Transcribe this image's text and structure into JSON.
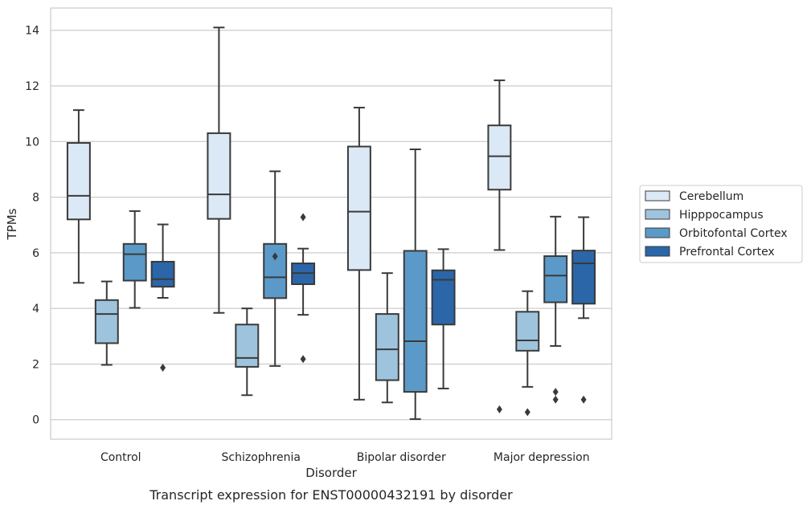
{
  "chart_data": {
    "type": "box",
    "xlabel": "Disorder",
    "ylabel": "TPMs",
    "caption": "Transcript expression for ENST00000432191 by disorder",
    "categories": [
      "Control",
      "Schizophrenia",
      "Bipolar disorder",
      "Major depression"
    ],
    "ylim": [
      -0.7,
      14.8
    ],
    "yticks": [
      0,
      2,
      4,
      6,
      8,
      10,
      12,
      14
    ],
    "grid": true,
    "legend_position": "center-right",
    "series": [
      {
        "name": "Cerebellum",
        "color": "#dbe8f5",
        "boxes": [
          {
            "whislo": 4.92,
            "q1": 7.2,
            "med": 8.05,
            "q3": 9.95,
            "whishi": 11.13,
            "fliers": []
          },
          {
            "whislo": 3.84,
            "q1": 7.22,
            "med": 8.1,
            "q3": 10.3,
            "whishi": 14.1,
            "fliers": []
          },
          {
            "whislo": 0.72,
            "q1": 5.38,
            "med": 7.48,
            "q3": 9.82,
            "whishi": 11.22,
            "fliers": []
          },
          {
            "whislo": 6.1,
            "q1": 8.27,
            "med": 9.47,
            "q3": 10.58,
            "whishi": 12.2,
            "fliers": [
              0.37
            ]
          }
        ]
      },
      {
        "name": "Hipppocampus",
        "color": "#9ec4dd",
        "boxes": [
          {
            "whislo": 1.97,
            "q1": 2.75,
            "med": 3.8,
            "q3": 4.3,
            "whishi": 4.97,
            "fliers": []
          },
          {
            "whislo": 0.88,
            "q1": 1.9,
            "med": 2.22,
            "q3": 3.42,
            "whishi": 4.0,
            "fliers": []
          },
          {
            "whislo": 0.62,
            "q1": 1.42,
            "med": 2.53,
            "q3": 3.8,
            "whishi": 5.27,
            "fliers": []
          },
          {
            "whislo": 1.18,
            "q1": 2.48,
            "med": 2.85,
            "q3": 3.88,
            "whishi": 4.62,
            "fliers": [
              0.27
            ]
          }
        ]
      },
      {
        "name": "Orbitofontal Cortex",
        "color": "#5b9ac8",
        "boxes": [
          {
            "whislo": 4.02,
            "q1": 5.0,
            "med": 5.95,
            "q3": 6.32,
            "whishi": 7.5,
            "fliers": []
          },
          {
            "whislo": 1.93,
            "q1": 4.37,
            "med": 5.12,
            "q3": 6.32,
            "whishi": 8.93,
            "fliers": [
              5.87
            ]
          },
          {
            "whislo": 0.02,
            "q1": 1.0,
            "med": 2.82,
            "q3": 6.07,
            "whishi": 9.72,
            "fliers": []
          },
          {
            "whislo": 2.65,
            "q1": 4.22,
            "med": 5.18,
            "q3": 5.88,
            "whishi": 7.3,
            "fliers": [
              1.0,
              0.72
            ]
          }
        ]
      },
      {
        "name": "Prefrontal Cortex",
        "color": "#2a66a8",
        "boxes": [
          {
            "whislo": 4.38,
            "q1": 4.78,
            "med": 5.05,
            "q3": 5.68,
            "whishi": 7.02,
            "fliers": [
              1.87
            ]
          },
          {
            "whislo": 3.77,
            "q1": 4.87,
            "med": 5.27,
            "q3": 5.62,
            "whishi": 6.15,
            "fliers": [
              7.28,
              2.18
            ]
          },
          {
            "whislo": 1.12,
            "q1": 3.42,
            "med": 5.03,
            "q3": 5.37,
            "whishi": 6.13,
            "fliers": []
          },
          {
            "whislo": 3.65,
            "q1": 4.17,
            "med": 5.62,
            "q3": 6.08,
            "whishi": 7.28,
            "fliers": [
              0.72
            ]
          }
        ]
      }
    ]
  }
}
